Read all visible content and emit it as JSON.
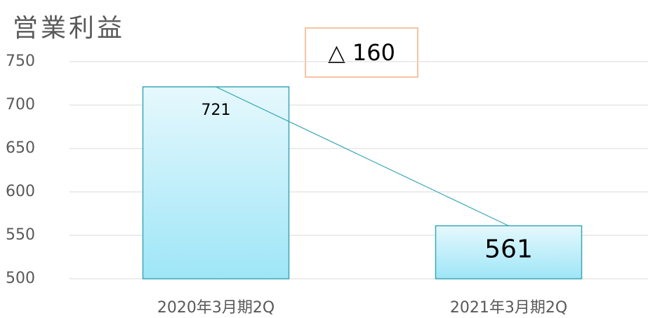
{
  "chart_data": {
    "type": "bar",
    "title": "営業利益",
    "annotation": "△ 160",
    "categories": [
      "2020年3月期2Q",
      "2021年3月期2Q"
    ],
    "values": [
      721,
      561
    ],
    "color": "#9ee6f7",
    "ylim": [
      500,
      750
    ],
    "yticks": [
      500,
      550,
      600,
      650,
      700,
      750
    ],
    "grid": true
  }
}
